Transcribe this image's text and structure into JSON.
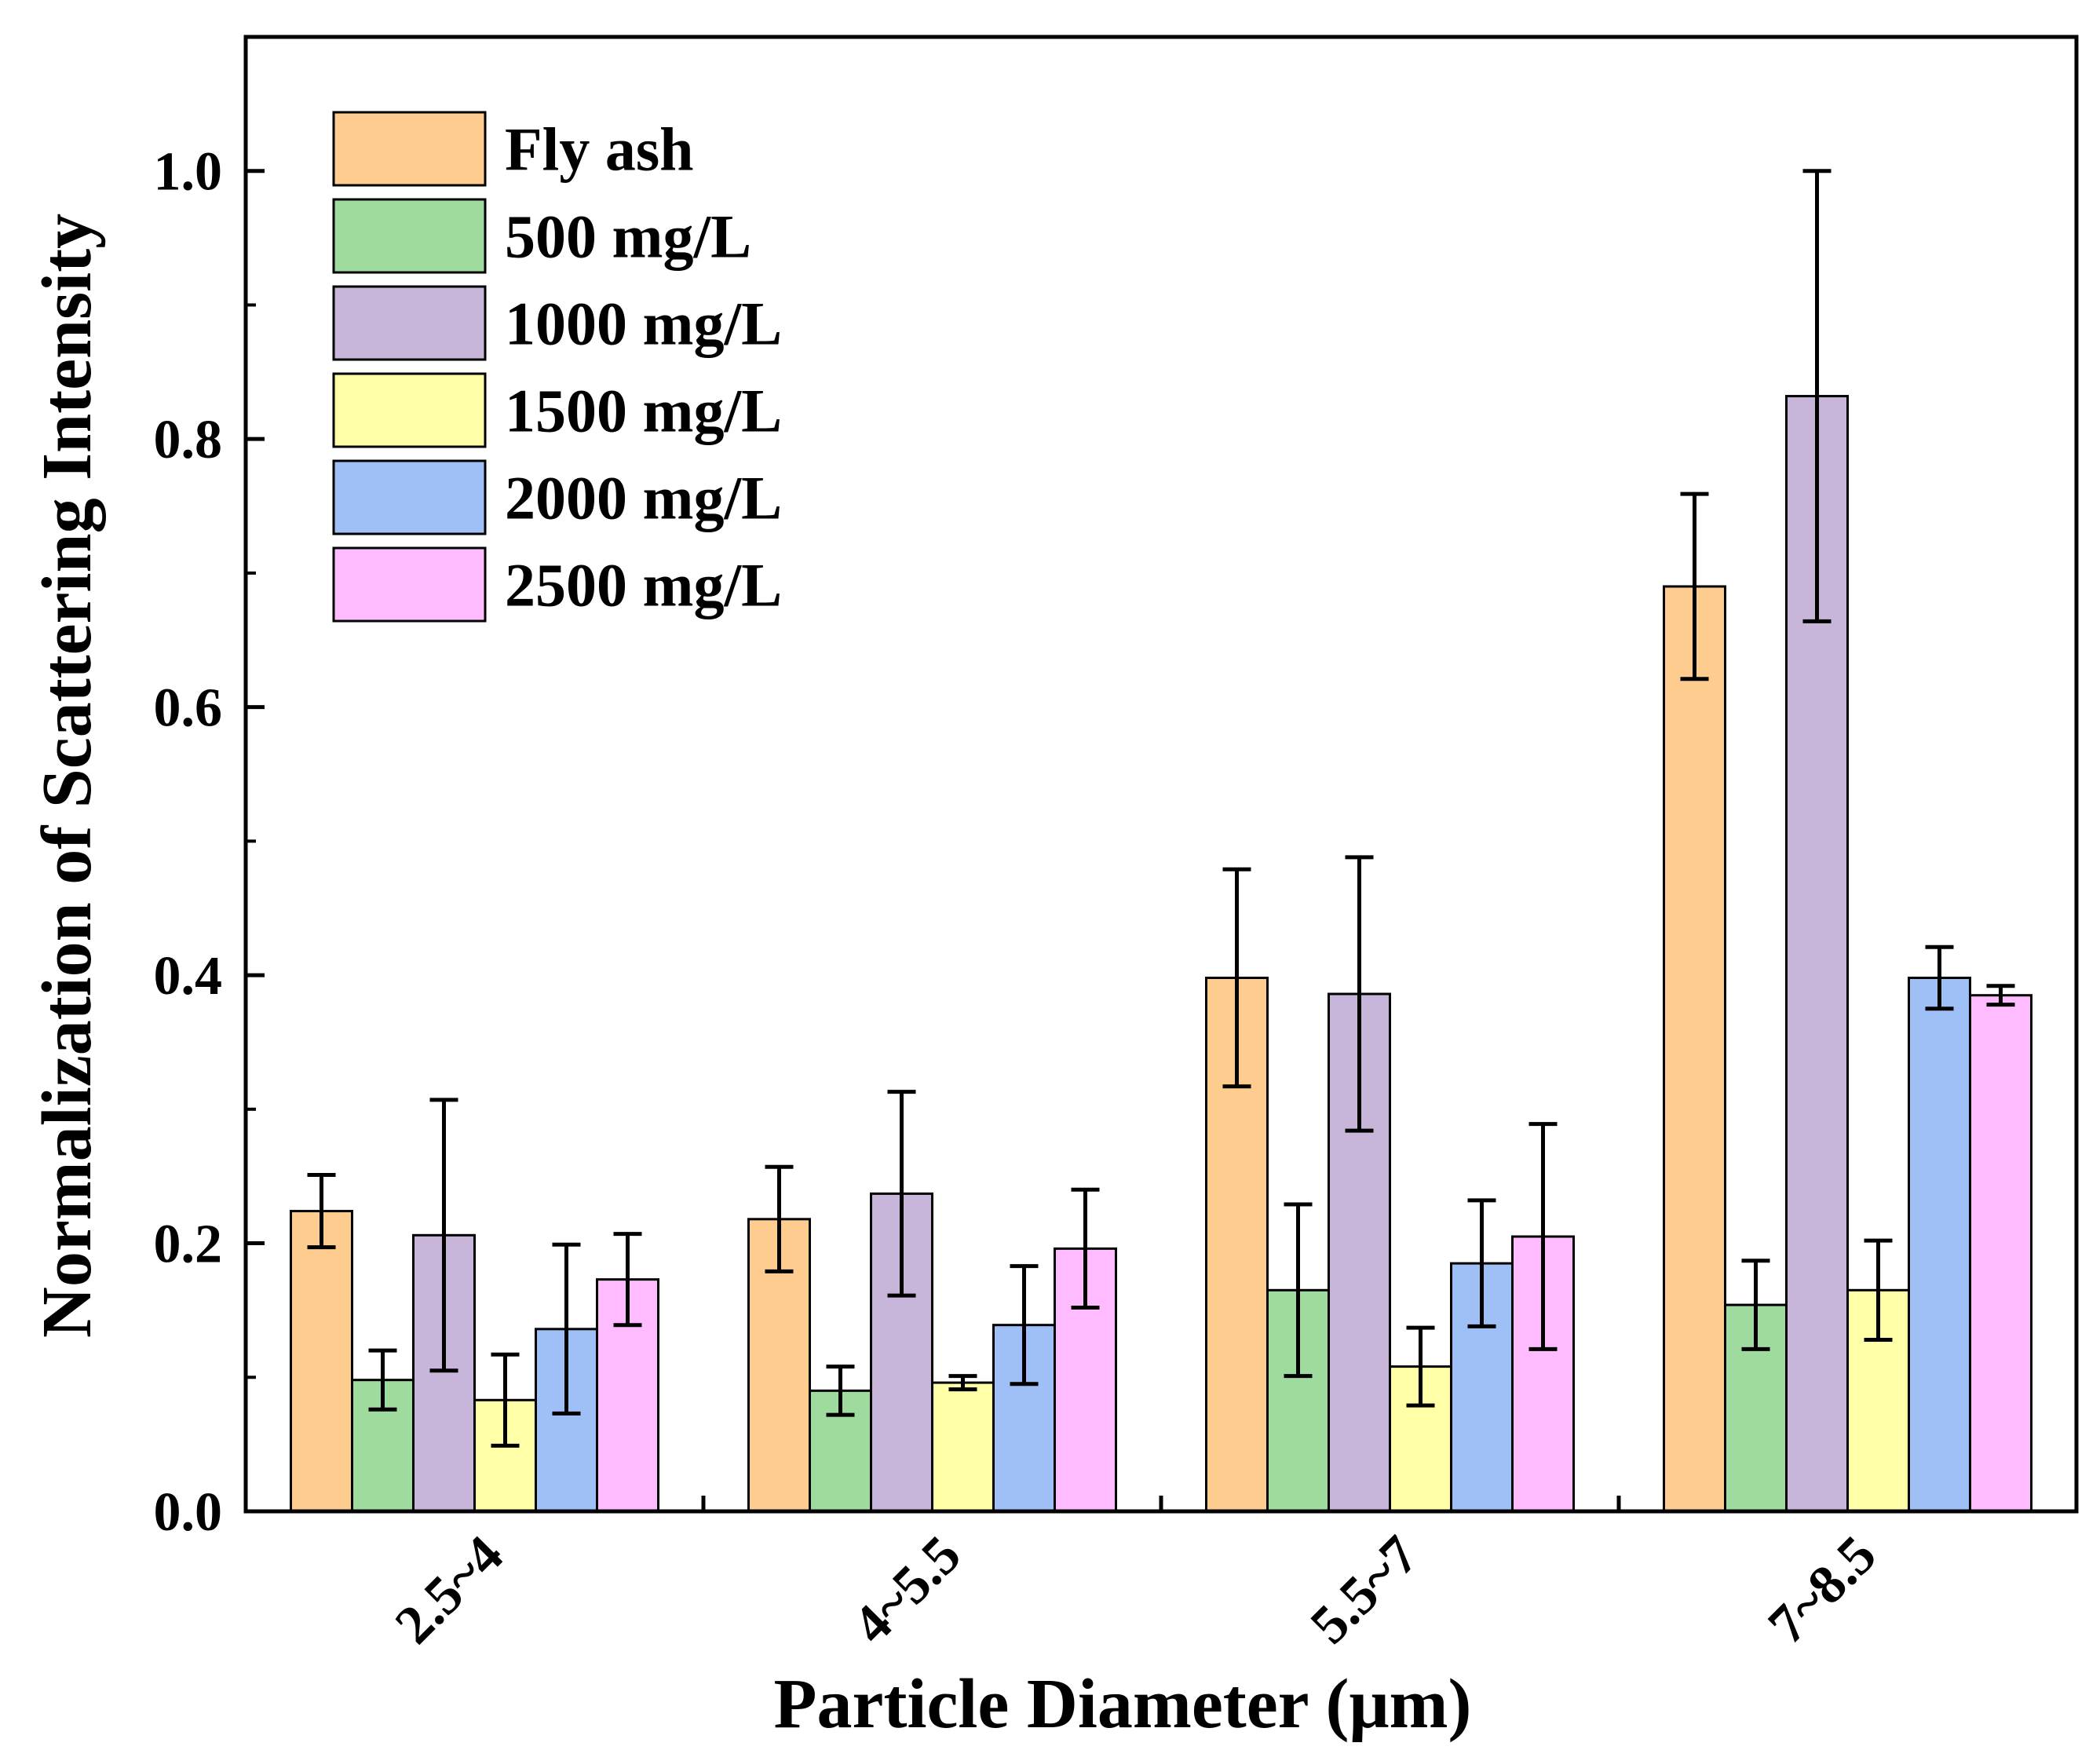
{
  "chart_data": {
    "type": "bar",
    "title": "",
    "xlabel": "Particle Diameter (μm)",
    "ylabel": "Normalization of Scattering Intensity",
    "ylim": [
      0,
      1.1
    ],
    "yticks": [
      "0.0",
      "0.2",
      "0.4",
      "0.6",
      "0.8",
      "1.0"
    ],
    "ytick_values": [
      0,
      0.2,
      0.4,
      0.6,
      0.8,
      1.0
    ],
    "grid": false,
    "legend_position": "top-left",
    "categories": [
      "2.5~4",
      "4~5.5",
      "5.5~7",
      "7~8.5"
    ],
    "series": [
      {
        "name": "Fly ash",
        "color": "#FFCC8F",
        "values": [
          0.224,
          0.218,
          0.398,
          0.69
        ],
        "errors": [
          0.027,
          0.039,
          0.081,
          0.069
        ]
      },
      {
        "name": "500 mg/L",
        "color": "#9FDB9F",
        "values": [
          0.098,
          0.09,
          0.165,
          0.154
        ],
        "errors": [
          0.022,
          0.018,
          0.064,
          0.033
        ]
      },
      {
        "name": "1000 mg/L",
        "color": "#C7B5DA",
        "values": [
          0.206,
          0.237,
          0.386,
          0.832
        ],
        "errors": [
          0.101,
          0.076,
          0.102,
          0.168
        ]
      },
      {
        "name": "1500 mg/L",
        "color": "#FFFFA8",
        "values": [
          0.083,
          0.096,
          0.108,
          0.165
        ],
        "errors": [
          0.034,
          0.005,
          0.029,
          0.037
        ]
      },
      {
        "name": "2000 mg/L",
        "color": "#9FBFF7",
        "values": [
          0.136,
          0.139,
          0.185,
          0.398
        ],
        "errors": [
          0.063,
          0.044,
          0.047,
          0.023
        ]
      },
      {
        "name": "2500 mg/L",
        "color": "#FFBBFF",
        "values": [
          0.173,
          0.196,
          0.205,
          0.385
        ],
        "errors": [
          0.034,
          0.044,
          0.084,
          0.007
        ]
      }
    ]
  }
}
